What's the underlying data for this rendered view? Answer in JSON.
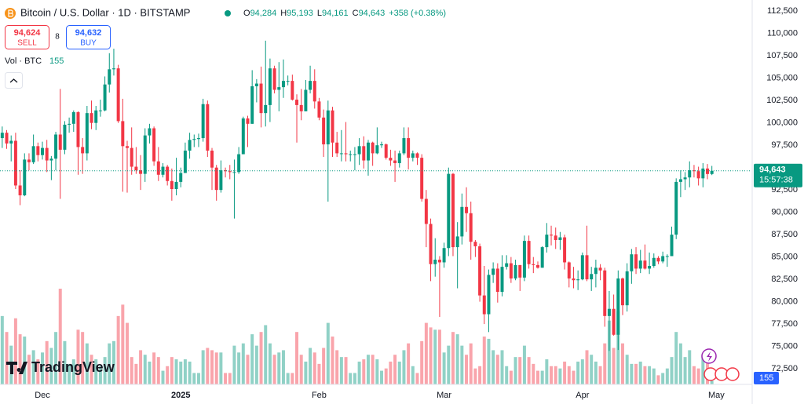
{
  "chart_data": {
    "type": "candlestick",
    "title": "Bitcoin / U.S. Dollar · 1D · BITSTAMP",
    "ohlc_legend": [
      {
        "key": "O",
        "value": "94,284"
      },
      {
        "key": "H",
        "value": "95,193"
      },
      {
        "key": "L",
        "value": "94,161"
      },
      {
        "key": "C",
        "value": "94,643"
      }
    ],
    "change": "+358 (+0.38%)",
    "sell": {
      "price": "94,624",
      "label": "SELL"
    },
    "spread": "8",
    "buy": {
      "price": "94,632",
      "label": "BUY"
    },
    "volume_title": "Vol · BTC",
    "volume_label": "155",
    "last_price_label": "94,643",
    "countdown": "15:57:38",
    "brand": "TradingView",
    "up_color": "#089981",
    "down_color": "#f23645",
    "grid": false,
    "xlim": [
      -0.5,
      167.5
    ],
    "xticks": [
      {
        "value": 9,
        "label": "Dec"
      },
      {
        "value": 40,
        "label": "2025"
      },
      {
        "value": 71,
        "label": "Feb"
      },
      {
        "value": 99,
        "label": "Mar"
      },
      {
        "value": 130,
        "label": "Apr"
      },
      {
        "value": 160,
        "label": "May"
      }
    ],
    "ylim": [
      70750,
      113750
    ],
    "yticks": [
      {
        "value": 72500,
        "label": "72,500"
      },
      {
        "value": 75000,
        "label": "75,000"
      },
      {
        "value": 77500,
        "label": "77,500"
      },
      {
        "value": 80000,
        "label": "80,000"
      },
      {
        "value": 82500,
        "label": "82,500"
      },
      {
        "value": 85000,
        "label": "85,000"
      },
      {
        "value": 87500,
        "label": "87,500"
      },
      {
        "value": 90000,
        "label": "90,000"
      },
      {
        "value": 92500,
        "label": "92,500"
      },
      {
        "value": 95000,
        "label": "95,000"
      },
      {
        "value": 97500,
        "label": "97,500"
      },
      {
        "value": 100000,
        "label": "100,000"
      },
      {
        "value": 102500,
        "label": "102,500"
      },
      {
        "value": 105000,
        "label": "105,000"
      },
      {
        "value": 107500,
        "label": "107,500"
      },
      {
        "value": 110000,
        "label": "110,000"
      },
      {
        "value": 112500,
        "label": "112,500"
      }
    ],
    "open": [
      98300,
      98900,
      97700,
      98000,
      93000,
      91900,
      95900,
      95600,
      97400,
      96400,
      97200,
      95800,
      96000,
      98700,
      97000,
      99800,
      99900,
      101200,
      97300,
      96600,
      101100,
      100000,
      101400,
      101400,
      104300,
      106000,
      106100,
      100200,
      97400,
      97200,
      95100,
      94700,
      94300,
      98600,
      99400,
      95700,
      94200,
      95100,
      93500,
      92600,
      93400,
      94400,
      96900,
      98100,
      98200,
      98300,
      102100,
      96900,
      95000,
      92500,
      94700,
      94600,
      94500,
      94500,
      96500,
      100500,
      99900,
      104100,
      104400,
      101100,
      102000,
      106100,
      103700,
      104000,
      104700,
      104700,
      102600,
      102000,
      101300,
      103700,
      104700,
      102400,
      100600,
      97600,
      101400,
      97800,
      96600,
      96600,
      96500,
      96500,
      96500,
      97400,
      95800,
      97800,
      96600,
      97500,
      97600,
      96100,
      95800,
      95500,
      96600,
      98300,
      96100,
      96600,
      96100,
      91500,
      88700,
      84200,
      84700,
      84400,
      86000,
      94300,
      86100,
      87300,
      90600,
      89900,
      86700,
      86200,
      80700,
      78600,
      83000,
      83700,
      81100,
      83900,
      84300,
      82600,
      84100,
      82700,
      86800,
      84200,
      84100,
      83800,
      86100,
      87500,
      87400,
      86900,
      87200,
      84400,
      82600,
      82400,
      82500,
      85200,
      82500,
      83100,
      83800,
      83500,
      78400,
      79200,
      76300,
      82600,
      79600,
      83400,
      85300,
      83700,
      84600,
      83700,
      84000,
      84900,
      84500,
      85100,
      85100,
      87500,
      93400,
      93700,
      93900,
      94700,
      94600,
      93800,
      94900,
      94284
    ],
    "high": [
      99600,
      99200,
      98600,
      98900,
      94700,
      96600,
      96600,
      98700,
      97800,
      97900,
      98100,
      96300,
      99000,
      103800,
      100200,
      100600,
      101400,
      101300,
      98300,
      101900,
      102500,
      101900,
      102600,
      105200,
      107800,
      108300,
      106500,
      102700,
      98000,
      99500,
      97300,
      96400,
      99400,
      99900,
      99600,
      97300,
      95500,
      95300,
      94900,
      96100,
      95000,
      97800,
      98900,
      98700,
      98800,
      102700,
      102500,
      97200,
      95300,
      95800,
      95000,
      95300,
      95900,
      97300,
      100700,
      100800,
      105900,
      104900,
      106300,
      109200,
      107200,
      106400,
      106800,
      107100,
      105300,
      105400,
      103200,
      103800,
      104800,
      106400,
      106000,
      102800,
      101500,
      102500,
      101800,
      99000,
      99200,
      100100,
      96900,
      97300,
      98300,
      98500,
      98100,
      97900,
      99500,
      97900,
      97700,
      97000,
      96900,
      96900,
      99500,
      99500,
      96900,
      96700,
      96500,
      92500,
      89300,
      87100,
      85100,
      86600,
      95000,
      94400,
      88900,
      92100,
      92800,
      91200,
      86900,
      86500,
      84000,
      83600,
      84400,
      84300,
      85200,
      85200,
      85000,
      84700,
      84100,
      87400,
      87400,
      85000,
      84500,
      86200,
      88800,
      88500,
      88300,
      87800,
      87500,
      84500,
      83900,
      83500,
      85500,
      88500,
      83900,
      84700,
      84200,
      83800,
      81200,
      80800,
      83500,
      82700,
      84300,
      85900,
      86100,
      85800,
      86400,
      85500,
      85400,
      85100,
      85600,
      85300,
      88400,
      93800,
      94700,
      94500,
      95700,
      95300,
      95100,
      95500,
      95400,
      95193
    ],
    "low": [
      97200,
      97100,
      95700,
      92600,
      90800,
      91800,
      94700,
      95400,
      95700,
      95900,
      94500,
      93600,
      94700,
      91500,
      96500,
      98900,
      99000,
      94200,
      94300,
      95800,
      99300,
      99200,
      100700,
      101300,
      103400,
      105300,
      100000,
      92300,
      92200,
      94200,
      94300,
      92500,
      93400,
      97700,
      95200,
      93500,
      93900,
      93000,
      91300,
      91900,
      92800,
      94400,
      96000,
      97300,
      97300,
      97900,
      96200,
      92500,
      91300,
      92200,
      93900,
      93700,
      89300,
      94300,
      96500,
      97300,
      99900,
      102300,
      99500,
      99600,
      100100,
      103300,
      101300,
      102800,
      104200,
      102500,
      97800,
      100300,
      101300,
      103300,
      101600,
      100300,
      96200,
      91200,
      96200,
      96200,
      95700,
      95700,
      95700,
      94700,
      95300,
      94900,
      94100,
      95200,
      96500,
      97200,
      95900,
      95200,
      93400,
      95000,
      96400,
      94800,
      95700,
      95300,
      91200,
      86100,
      82300,
      82800,
      78300,
      83800,
      85100,
      85100,
      81500,
      86400,
      87800,
      84700,
      85000,
      80000,
      77500,
      76600,
      82100,
      79900,
      80600,
      83600,
      82100,
      82400,
      81200,
      82300,
      83700,
      83200,
      83700,
      83800,
      85500,
      86300,
      85900,
      85800,
      83600,
      81600,
      81500,
      81300,
      82400,
      82300,
      81200,
      81600,
      82400,
      77200,
      74500,
      76200,
      74600,
      78500,
      78900,
      82000,
      83100,
      83200,
      83600,
      83100,
      83800,
      84200,
      84300,
      83900,
      85100,
      87000,
      91700,
      92500,
      92800,
      93900,
      93000,
      92800,
      93700,
      94161
    ],
    "close": [
      98900,
      97700,
      98000,
      93000,
      91900,
      95900,
      95600,
      97400,
      96400,
      97200,
      95800,
      96000,
      98700,
      97000,
      99800,
      99900,
      101200,
      97300,
      96600,
      101100,
      100000,
      101400,
      101400,
      104300,
      106000,
      106100,
      100200,
      97400,
      97200,
      95100,
      94700,
      94300,
      98600,
      99400,
      95700,
      94200,
      95100,
      93500,
      92600,
      93400,
      94400,
      96900,
      98100,
      98200,
      98300,
      102100,
      96900,
      95000,
      92500,
      94700,
      94600,
      94500,
      94500,
      96500,
      100500,
      99900,
      104100,
      104400,
      101100,
      102000,
      106100,
      103700,
      104000,
      104700,
      104700,
      102600,
      102000,
      101300,
      103700,
      104700,
      102400,
      100600,
      97600,
      101400,
      97800,
      96600,
      96600,
      96500,
      96500,
      96500,
      97400,
      95800,
      97800,
      96600,
      97500,
      97600,
      96100,
      95800,
      95500,
      96600,
      98300,
      96100,
      96600,
      96100,
      91500,
      88700,
      84200,
      84700,
      84400,
      86000,
      94300,
      86100,
      87300,
      90600,
      89900,
      86700,
      86200,
      80700,
      78600,
      83000,
      83700,
      81100,
      83900,
      84300,
      82600,
      84100,
      82700,
      86800,
      84200,
      84100,
      83800,
      86100,
      87500,
      87400,
      86900,
      87200,
      84400,
      82600,
      82400,
      82500,
      85200,
      82500,
      83100,
      83800,
      83500,
      78400,
      79200,
      76300,
      82600,
      79600,
      83400,
      85300,
      83700,
      84600,
      83700,
      84000,
      84900,
      84500,
      85100,
      85100,
      87500,
      93400,
      93700,
      93900,
      94700,
      94600,
      93800,
      94900,
      94284,
      94643
    ],
    "volume": [
      3000,
      2300,
      1700,
      2900,
      2200,
      2100,
      1300,
      1500,
      1100,
      1400,
      1900,
      1600,
      2300,
      4200,
      1900,
      900,
      1100,
      2400,
      2300,
      1800,
      1300,
      1100,
      800,
      1200,
      1800,
      1900,
      3000,
      3500,
      2700,
      1200,
      900,
      1500,
      1300,
      1000,
      1400,
      1200,
      600,
      800,
      1200,
      1100,
      1000,
      1100,
      1000,
      500,
      500,
      1500,
      1600,
      1500,
      1400,
      1400,
      500,
      500,
      1700,
      1400,
      1800,
      1300,
      2200,
      1700,
      2300,
      2600,
      1800,
      1300,
      1400,
      1500,
      500,
      500,
      2300,
      1300,
      1000,
      1600,
      1400,
      900,
      1600,
      2700,
      2100,
      1500,
      1200,
      1200,
      500,
      500,
      1000,
      1100,
      1300,
      1300,
      1100,
      600,
      700,
      1000,
      1300,
      1000,
      1500,
      1800,
      800,
      500,
      1900,
      2700,
      2500,
      2400,
      2400,
      1400,
      1700,
      2300,
      2200,
      1700,
      1300,
      1800,
      700,
      800,
      2100,
      2000,
      1500,
      1300,
      1500,
      800,
      600,
      1200,
      1200,
      1700,
      1200,
      900,
      600,
      600,
      1100,
      800,
      800,
      700,
      1000,
      800,
      600,
      1000,
      1100,
      1500,
      1300,
      1000,
      800,
      1800,
      2800,
      1600,
      3200,
      1800,
      1300,
      900,
      900,
      1000,
      800,
      800,
      700,
      400,
      500,
      700,
      1200,
      2300,
      1800,
      1200,
      1500,
      800,
      700,
      1300,
      1000,
      155
    ]
  }
}
